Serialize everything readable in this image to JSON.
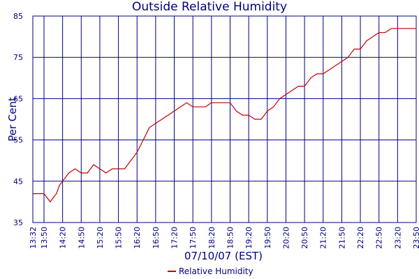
{
  "chart_data": {
    "type": "line",
    "title": "Outside Relative Humidity",
    "xlabel": "07/10/07 (EST)",
    "ylabel": "Per Cent",
    "ylim": [
      35,
      85
    ],
    "yticks": [
      "35",
      "45",
      "55",
      "65",
      "75",
      "85"
    ],
    "x_tick_labels": [
      "13:32",
      "13:50",
      "14:20",
      "14:50",
      "15:20",
      "15:50",
      "16:20",
      "16:50",
      "17:20",
      "17:50",
      "18:20",
      "18:50",
      "19:20",
      "19:50",
      "20:20",
      "20:50",
      "21:20",
      "21:50",
      "22:20",
      "22:50",
      "23:20",
      "23:50"
    ],
    "grid": true,
    "legend_position": "bottom",
    "series": [
      {
        "name": "Relative Humidity",
        "color": "#c00000",
        "x": [
          "13:32",
          "13:40",
          "13:50",
          "13:55",
          "14:00",
          "14:05",
          "14:10",
          "14:15",
          "14:20",
          "14:25",
          "14:30",
          "14:35",
          "14:40",
          "14:45",
          "14:50",
          "14:55",
          "15:00",
          "15:05",
          "15:10",
          "15:15",
          "15:20",
          "15:25",
          "15:30",
          "15:35",
          "15:40",
          "15:45",
          "15:50",
          "15:55",
          "16:00",
          "16:05",
          "16:10",
          "16:15",
          "16:20",
          "16:25",
          "16:30",
          "16:35",
          "16:40",
          "16:45",
          "16:50",
          "16:55",
          "17:00",
          "17:05",
          "17:10",
          "17:15",
          "17:20",
          "17:25",
          "17:30",
          "17:35",
          "17:40",
          "17:45",
          "17:50",
          "17:55",
          "18:00",
          "18:05",
          "18:10",
          "18:15",
          "18:20",
          "18:25",
          "18:30",
          "18:35",
          "18:40",
          "18:45",
          "18:50",
          "18:55",
          "19:00",
          "19:05",
          "19:10",
          "19:15",
          "19:20",
          "19:25",
          "19:30",
          "19:35",
          "19:40",
          "19:45",
          "19:50",
          "19:55",
          "20:00",
          "20:05",
          "20:10",
          "20:15",
          "20:20",
          "20:25",
          "20:30",
          "20:35",
          "20:40",
          "20:45",
          "20:50",
          "20:55",
          "21:00",
          "21:05",
          "21:10",
          "21:15",
          "21:20",
          "21:25",
          "21:30",
          "21:35",
          "21:40",
          "21:45",
          "21:50",
          "21:55",
          "22:00",
          "22:05",
          "22:10",
          "22:15",
          "22:20",
          "22:25",
          "22:30",
          "22:35",
          "22:40",
          "22:45",
          "22:50",
          "22:55",
          "23:00",
          "23:05",
          "23:10",
          "23:15",
          "23:20",
          "23:25",
          "23:30",
          "23:35",
          "23:40",
          "23:45",
          "23:50"
        ],
        "values": [
          42,
          42,
          42,
          41,
          40,
          41,
          42,
          44,
          45,
          46,
          47,
          47.5,
          48,
          47.5,
          47,
          47,
          47,
          48,
          49,
          48.5,
          48,
          47.5,
          47,
          47.5,
          48,
          48,
          48,
          48,
          48,
          49,
          50,
          51,
          52,
          53.5,
          55,
          56.5,
          58,
          58.5,
          59,
          59.5,
          60,
          60.5,
          61,
          61.5,
          62,
          62.5,
          63,
          63.5,
          64,
          63.5,
          63,
          63,
          63,
          63,
          63,
          63.5,
          64,
          64,
          64,
          64,
          64,
          64,
          64,
          63,
          62,
          61.5,
          61,
          61,
          61,
          60.5,
          60,
          60,
          60,
          61,
          62,
          62.5,
          63,
          64,
          65,
          65.5,
          66,
          66.5,
          67,
          67.5,
          68,
          68,
          68,
          69,
          70,
          70.5,
          71,
          71,
          71,
          71.5,
          72,
          72.5,
          73,
          73.5,
          74,
          74.5,
          75,
          76,
          77,
          77,
          77,
          78,
          79,
          79.5,
          80,
          80.5,
          81,
          81,
          81,
          81.5,
          82,
          82,
          82,
          82,
          82,
          82,
          82,
          82,
          82
        ]
      }
    ]
  }
}
